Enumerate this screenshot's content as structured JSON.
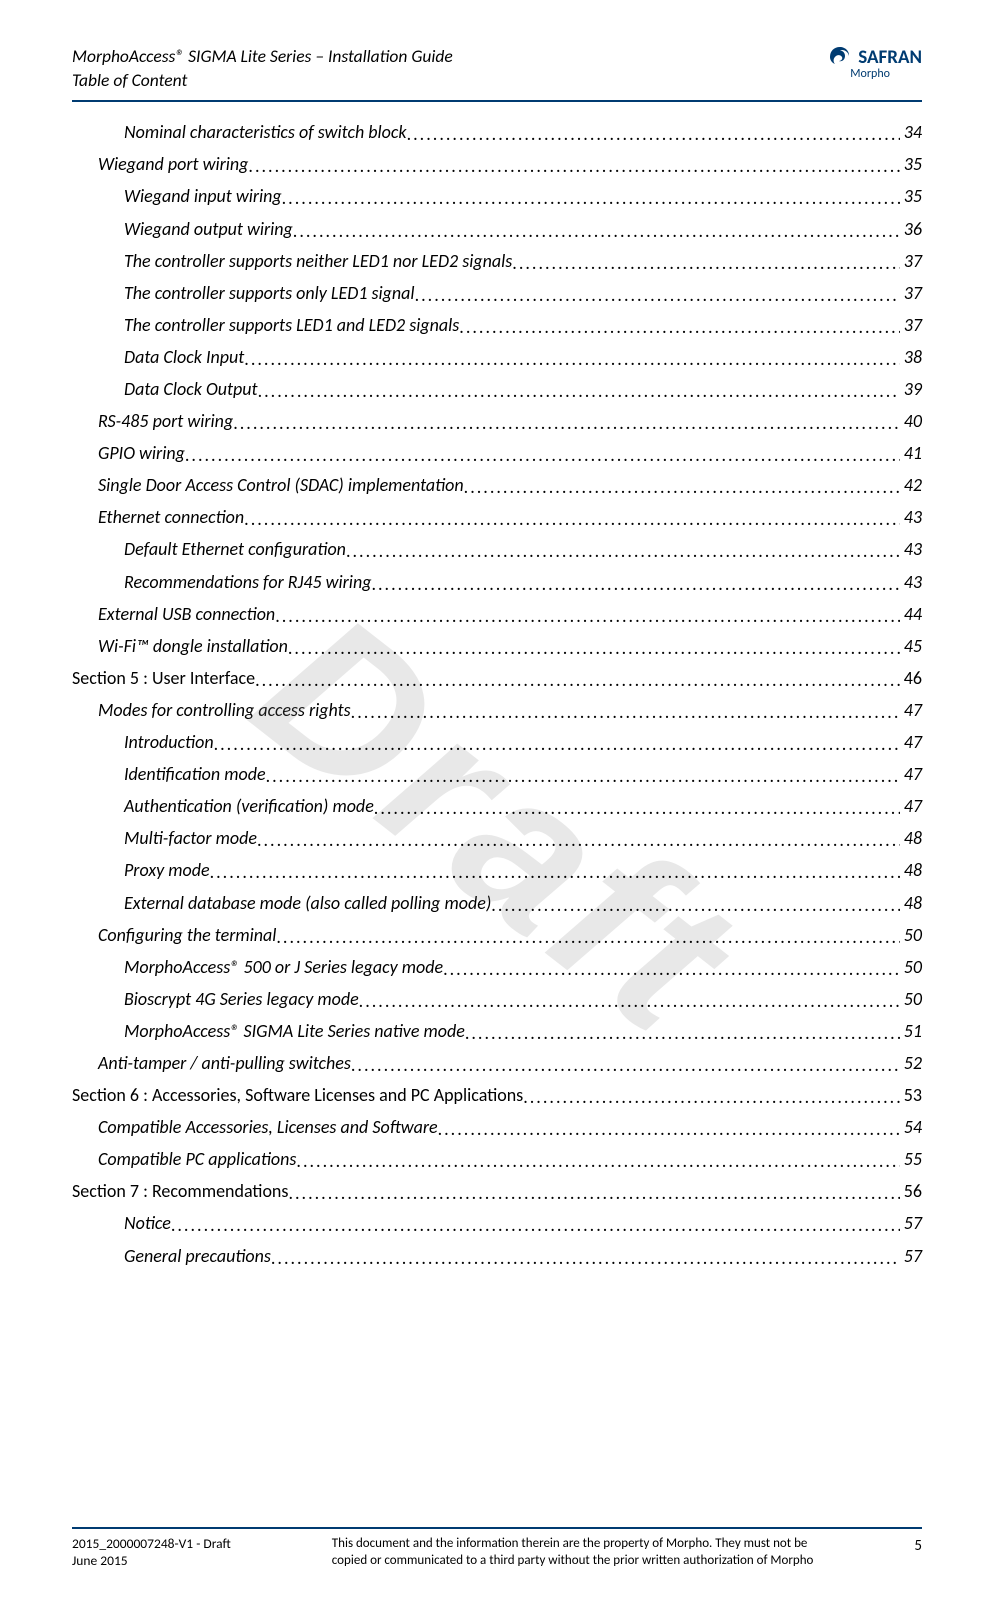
{
  "header": {
    "title": "MorphoAccess® SIGMA Lite Series – Installation Guide",
    "subtitle": "Table of Content",
    "logo_brand": "SAFRAN",
    "logo_sub": "Morpho"
  },
  "watermark": "Draft",
  "toc": [
    {
      "text": "Nominal characteristics of switch block",
      "page": "34",
      "indent": 2,
      "italic": true
    },
    {
      "text": "Wiegand port wiring",
      "page": "35",
      "indent": 1,
      "italic": true
    },
    {
      "text": "Wiegand input wiring",
      "page": "35",
      "indent": 2,
      "italic": true
    },
    {
      "text": "Wiegand output wiring",
      "page": "36",
      "indent": 2,
      "italic": true
    },
    {
      "text": "The controller supports neither LED1 nor LED2 signals",
      "page": "37",
      "indent": 2,
      "italic": true
    },
    {
      "text": "The controller supports only LED1 signal",
      "page": "37",
      "indent": 2,
      "italic": true
    },
    {
      "text": "The controller supports LED1 and LED2 signals",
      "page": "37",
      "indent": 2,
      "italic": true
    },
    {
      "text": "Data Clock Input",
      "page": "38",
      "indent": 2,
      "italic": true
    },
    {
      "text": "Data Clock Output",
      "page": "39",
      "indent": 2,
      "italic": true
    },
    {
      "text": "RS-485 port wiring",
      "page": "40",
      "indent": 1,
      "italic": true
    },
    {
      "text": "GPIO wiring",
      "page": "41",
      "indent": 1,
      "italic": true
    },
    {
      "text": "Single Door Access Control (SDAC) implementation",
      "page": "42",
      "indent": 1,
      "italic": true
    },
    {
      "text": "Ethernet connection",
      "page": "43",
      "indent": 1,
      "italic": true
    },
    {
      "text": "Default Ethernet configuration",
      "page": "43",
      "indent": 2,
      "italic": true
    },
    {
      "text": "Recommendations for RJ45 wiring",
      "page": "43",
      "indent": 2,
      "italic": true
    },
    {
      "text": "External USB connection",
      "page": "44",
      "indent": 1,
      "italic": true
    },
    {
      "text": "Wi-Fi™ dongle installation",
      "page": "45",
      "indent": 1,
      "italic": true
    },
    {
      "text": "Section 5 : User Interface",
      "page": "46",
      "indent": 0,
      "italic": false
    },
    {
      "text": "Modes for controlling access rights",
      "page": "47",
      "indent": 1,
      "italic": true
    },
    {
      "text": "Introduction",
      "page": "47",
      "indent": 2,
      "italic": true
    },
    {
      "text": "Identification mode",
      "page": "47",
      "indent": 2,
      "italic": true
    },
    {
      "text": "Authentication (verification) mode",
      "page": "47",
      "indent": 2,
      "italic": true
    },
    {
      "text": "Multi-factor mode",
      "page": "48",
      "indent": 2,
      "italic": true
    },
    {
      "text": "Proxy mode",
      "page": "48",
      "indent": 2,
      "italic": true
    },
    {
      "text": "External database mode (also called polling mode)",
      "page": "48",
      "indent": 2,
      "italic": true
    },
    {
      "text": "Configuring the terminal",
      "page": "50",
      "indent": 1,
      "italic": true
    },
    {
      "text": "MorphoAccess® 500 or J Series legacy mode",
      "page": "50",
      "indent": 2,
      "italic": true
    },
    {
      "text": "Bioscrypt 4G Series legacy mode",
      "page": "50",
      "indent": 2,
      "italic": true
    },
    {
      "text": "MorphoAccess® SIGMA Lite Series native mode",
      "page": "51",
      "indent": 2,
      "italic": true
    },
    {
      "text": "Anti-tamper / anti-pulling switches",
      "page": "52",
      "indent": 1,
      "italic": true
    },
    {
      "text": "Section 6 : Accessories, Software Licenses and PC Applications",
      "page": "53",
      "indent": 0,
      "italic": false
    },
    {
      "text": "Compatible Accessories, Licenses and Software",
      "page": "54",
      "indent": 1,
      "italic": true
    },
    {
      "text": "Compatible PC applications",
      "page": "55",
      "indent": 1,
      "italic": true
    },
    {
      "text": "Section 7 : Recommendations",
      "page": "56",
      "indent": 0,
      "italic": false
    },
    {
      "text": "Notice",
      "page": "57",
      "indent": 2,
      "italic": true
    },
    {
      "text": "General precautions",
      "page": "57",
      "indent": 2,
      "italic": true
    }
  ],
  "footer": {
    "left_line1": "2015_2000007248-V1 - Draft",
    "left_line2": "June 2015",
    "center_line1": "This document and the information therein are the property of Morpho. They must not be",
    "center_line2": "copied or communicated to a third party without the prior written authorization of Morpho",
    "page_number": "5"
  },
  "colors": {
    "rule": "#003b71",
    "text": "#000000",
    "watermark": "rgba(128,128,128,0.18)"
  }
}
